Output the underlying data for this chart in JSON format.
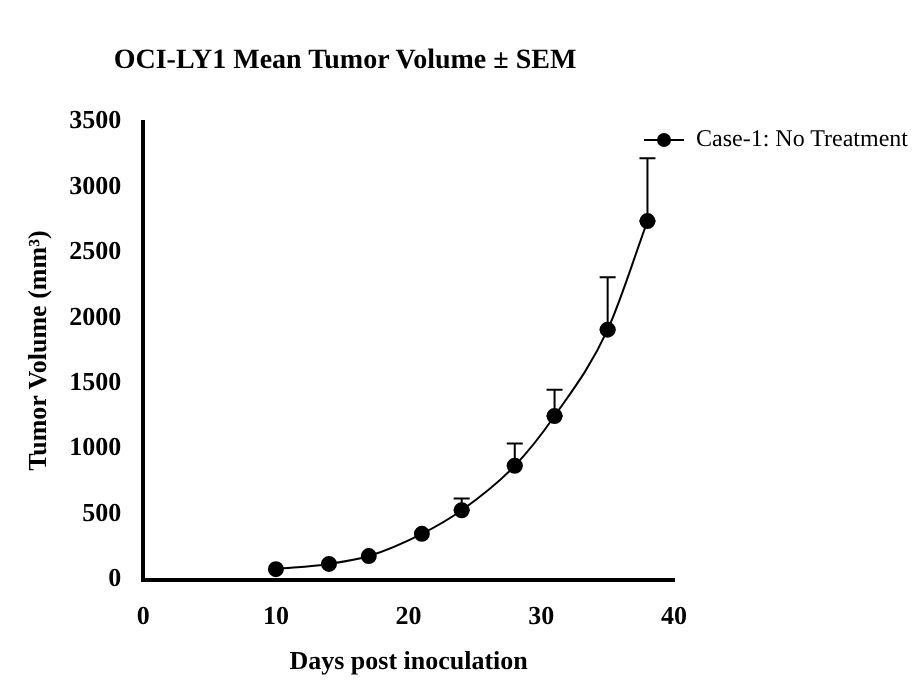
{
  "chart_data": {
    "type": "line",
    "title": "OCI-LY1 Mean Tumor Volume ± SEM",
    "xlabel": "Days post inoculation",
    "ylabel": "Tumor Volume (mm³)",
    "x": [
      10,
      14,
      17,
      21,
      24,
      28,
      31,
      35,
      38
    ],
    "series": [
      {
        "name": "Case-1: No Treatment",
        "color": "#000000",
        "values": [
          80,
          120,
          180,
          350,
          530,
          870,
          1250,
          1910,
          2740
        ],
        "errors": [
          null,
          null,
          null,
          null,
          [
            530,
            620
          ],
          [
            870,
            1040
          ],
          [
            1250,
            1450
          ],
          [
            1910,
            2310
          ],
          [
            2740,
            3220
          ]
        ]
      }
    ],
    "xlim": [
      0,
      40
    ],
    "xticks": [
      0,
      10,
      20,
      30,
      40
    ],
    "ylim": [
      0,
      3500
    ],
    "yticks": [
      0,
      500,
      1000,
      1500,
      2000,
      2500,
      3000,
      3500
    ],
    "grid": false,
    "legend": "top right",
    "marker": "circle",
    "line_style": "solid"
  }
}
